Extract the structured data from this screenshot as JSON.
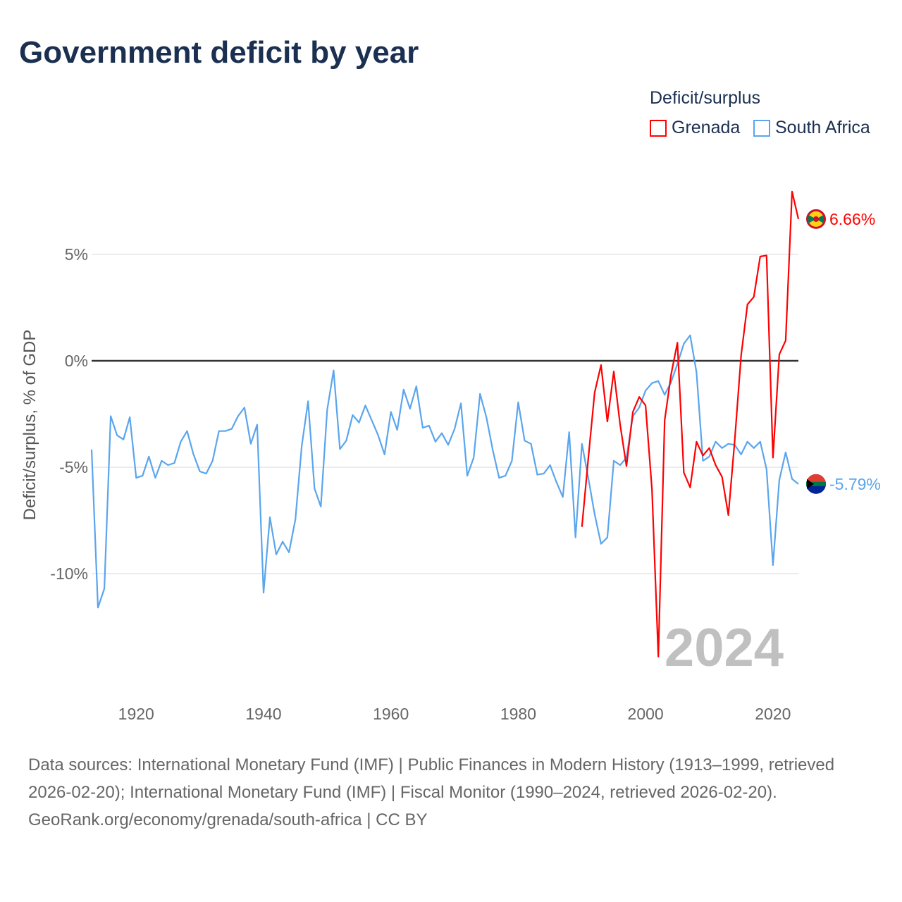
{
  "title": "Government deficit by year",
  "legend": {
    "title": "Deficit/surplus",
    "items": [
      {
        "label": "Grenada",
        "color": "#ff0000"
      },
      {
        "label": "South Africa",
        "color": "#5aa5ee"
      }
    ]
  },
  "footer": {
    "sources": "Data sources: International Monetary Fund (IMF) | Public Finances in Modern History (1913–1999, retrieved 2026-02-20); International Monetary Fund (IMF) | Fiscal Monitor (1990–2024, retrieved 2026-02-20).",
    "credit": "GeoRank.org/economy/grenada/south-africa | CC BY"
  },
  "chart_data": {
    "type": "line",
    "title": "Government deficit by year",
    "xlabel": "",
    "ylabel": "Deficit/surplus, % of GDP",
    "xlim": [
      1913,
      2024
    ],
    "ylim": [
      -14,
      8
    ],
    "xticks": [
      1920,
      1940,
      1960,
      1980,
      2000,
      2020
    ],
    "yticks": [
      {
        "v": 5,
        "label": "5%"
      },
      {
        "v": 0,
        "label": "0%"
      },
      {
        "v": -5,
        "label": "-5%"
      },
      {
        "v": -10,
        "label": "-10%"
      }
    ],
    "watermark": "2024",
    "series": [
      {
        "name": "Grenada",
        "color": "#ff0000",
        "end_label": "6.66%",
        "start": 1990,
        "values": [
          -7.8,
          -4.6,
          -1.5,
          -0.2,
          -2.85,
          -0.5,
          -3.0,
          -4.95,
          -2.4,
          -1.7,
          -2.1,
          -6.05,
          -13.9,
          -2.8,
          -0.65,
          0.85,
          -5.25,
          -5.95,
          -3.8,
          -4.45,
          -4.1,
          -4.9,
          -5.45,
          -7.25,
          -3.75,
          0.25,
          2.65,
          3.0,
          4.9,
          4.95,
          -4.55,
          0.3,
          0.95,
          7.95,
          6.66
        ]
      },
      {
        "name": "South Africa",
        "color": "#5aa5ee",
        "end_label": "-5.79%",
        "start": 1913,
        "values": [
          -4.17,
          -11.6,
          -10.7,
          -2.6,
          -3.5,
          -3.7,
          -2.65,
          -5.5,
          -5.4,
          -4.5,
          -5.5,
          -4.7,
          -4.9,
          -4.8,
          -3.8,
          -3.3,
          -4.4,
          -5.2,
          -5.3,
          -4.7,
          -3.3,
          -3.3,
          -3.2,
          -2.6,
          -2.2,
          -3.9,
          -3.0,
          -10.9,
          -7.35,
          -9.1,
          -8.5,
          -9.0,
          -7.45,
          -4.0,
          -1.9,
          -6.0,
          -6.85,
          -2.3,
          -0.45,
          -4.15,
          -3.75,
          -2.55,
          -2.9,
          -2.1,
          -2.8,
          -3.5,
          -4.4,
          -2.4,
          -3.25,
          -1.35,
          -2.25,
          -1.2,
          -3.15,
          -3.05,
          -3.8,
          -3.4,
          -3.95,
          -3.2,
          -2.0,
          -5.4,
          -4.55,
          -1.55,
          -2.65,
          -4.2,
          -5.5,
          -5.4,
          -4.7,
          -1.95,
          -3.75,
          -3.9,
          -5.35,
          -5.3,
          -4.9,
          -5.7,
          -6.4,
          -3.35,
          -8.3,
          -3.9,
          -5.5,
          -7.2,
          -8.6,
          -8.3,
          -4.7,
          -4.9,
          -4.55,
          -2.6,
          -2.2,
          -1.4,
          -1.05,
          -0.95,
          -1.6,
          -1.0,
          -0.15,
          0.8,
          1.2,
          -0.55,
          -4.7,
          -4.5,
          -3.8,
          -4.1,
          -3.9,
          -3.95,
          -4.4,
          -3.8,
          -4.1,
          -3.8,
          -5.1,
          -9.6,
          -5.6,
          -4.3,
          -5.55,
          -5.79
        ]
      }
    ]
  }
}
